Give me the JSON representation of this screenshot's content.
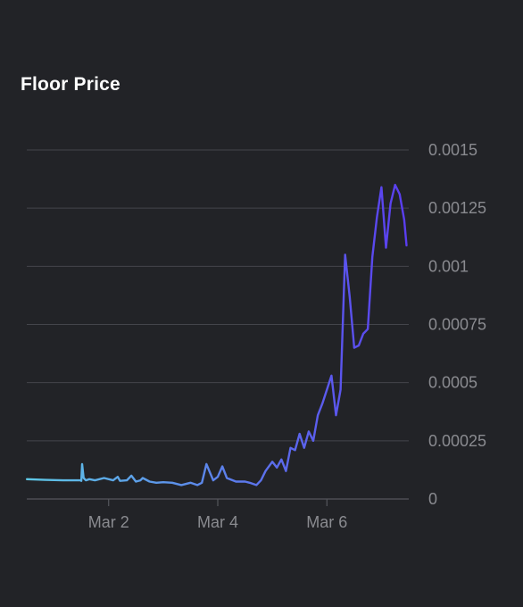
{
  "chart_data": {
    "type": "line",
    "title": "Floor Price",
    "xlabel": "",
    "ylabel": "",
    "x_ticks": [
      "Mar 2",
      "Mar 4",
      "Mar 6"
    ],
    "x_range": [
      "2023-03-01T00:00",
      "2023-03-08T00:00"
    ],
    "y_ticks": [
      "0.0015",
      "0.00125",
      "0.001",
      "0.00075",
      "0.0005",
      "0.00025",
      "0"
    ],
    "ylim": [
      0,
      0.0015
    ],
    "grid": "horizontal",
    "legend": "none",
    "line_color_start": "#5ec8e6",
    "line_color_end": "#5a3df0",
    "series": [
      {
        "x": [
          "2023-03-01T00:05",
          "2023-03-01T08:00",
          "2023-03-01T16:00",
          "2023-03-01T23:30",
          "2023-03-02T00:00",
          "2023-03-02T00:20",
          "2023-03-02T01:00",
          "2023-03-02T02:00",
          "2023-03-02T03:30",
          "2023-03-02T06:00",
          "2023-03-02T10:00",
          "2023-03-02T14:00",
          "2023-03-02T16:00",
          "2023-03-02T17:00",
          "2023-03-02T20:00",
          "2023-03-02T22:00",
          "2023-03-03T00:00",
          "2023-03-03T02:00",
          "2023-03-03T03:00",
          "2023-03-03T06:00",
          "2023-03-03T09:00",
          "2023-03-03T12:00",
          "2023-03-03T16:00",
          "2023-03-03T20:00",
          "2023-03-04T00:00",
          "2023-03-04T03:00",
          "2023-03-04T05:00",
          "2023-03-04T07:00",
          "2023-03-04T10:00",
          "2023-03-04T12:00",
          "2023-03-04T14:00",
          "2023-03-04T16:00",
          "2023-03-04T20:00",
          "2023-03-05T00:00",
          "2023-03-05T02:00",
          "2023-03-05T05:00",
          "2023-03-05T07:00",
          "2023-03-05T09:00",
          "2023-03-05T12:00",
          "2023-03-05T14:00",
          "2023-03-05T16:00",
          "2023-03-05T18:00",
          "2023-03-05T20:00",
          "2023-03-05T22:00",
          "2023-03-06T00:00",
          "2023-03-06T02:00",
          "2023-03-06T04:00",
          "2023-03-06T06:00",
          "2023-03-06T08:00",
          "2023-03-06T10:00",
          "2023-03-06T12:00",
          "2023-03-06T14:00",
          "2023-03-06T16:00",
          "2023-03-06T18:00",
          "2023-03-06T20:00",
          "2023-03-06T22:00",
          "2023-03-07T00:00",
          "2023-03-07T02:00",
          "2023-03-07T04:00",
          "2023-03-07T06:00",
          "2023-03-07T08:00",
          "2023-03-07T10:00",
          "2023-03-07T12:00",
          "2023-03-07T14:00",
          "2023-03-07T16:00",
          "2023-03-07T18:00",
          "2023-03-07T20:00",
          "2023-03-07T22:00",
          "2023-03-07T23:00"
        ],
        "y": [
          8.5e-05,
          8.2e-05,
          8e-05,
          8e-05,
          7.8e-05,
          0.00015,
          9e-05,
          8e-05,
          8.5e-05,
          8e-05,
          9e-05,
          8e-05,
          9.5e-05,
          7.8e-05,
          8e-05,
          0.0001,
          7.5e-05,
          8e-05,
          9e-05,
          7.5e-05,
          7e-05,
          7.2e-05,
          7e-05,
          6e-05,
          7e-05,
          6e-05,
          7e-05,
          0.00015,
          8e-05,
          9.5e-05,
          0.00014,
          9e-05,
          7.5e-05,
          7.5e-05,
          7e-05,
          6e-05,
          8e-05,
          0.00012,
          0.00016,
          0.000135,
          0.00017,
          0.00012,
          0.00022,
          0.00021,
          0.00028,
          0.00022,
          0.00029,
          0.00025,
          0.00036,
          0.00041,
          0.00047,
          0.00053,
          0.00036,
          0.00047,
          0.00105,
          0.00087,
          0.00065,
          0.00066,
          0.00071,
          0.00073,
          0.00104,
          0.00121,
          0.00134,
          0.00108,
          0.00127,
          0.00135,
          0.00131,
          0.0012,
          0.00109
        ]
      }
    ]
  }
}
